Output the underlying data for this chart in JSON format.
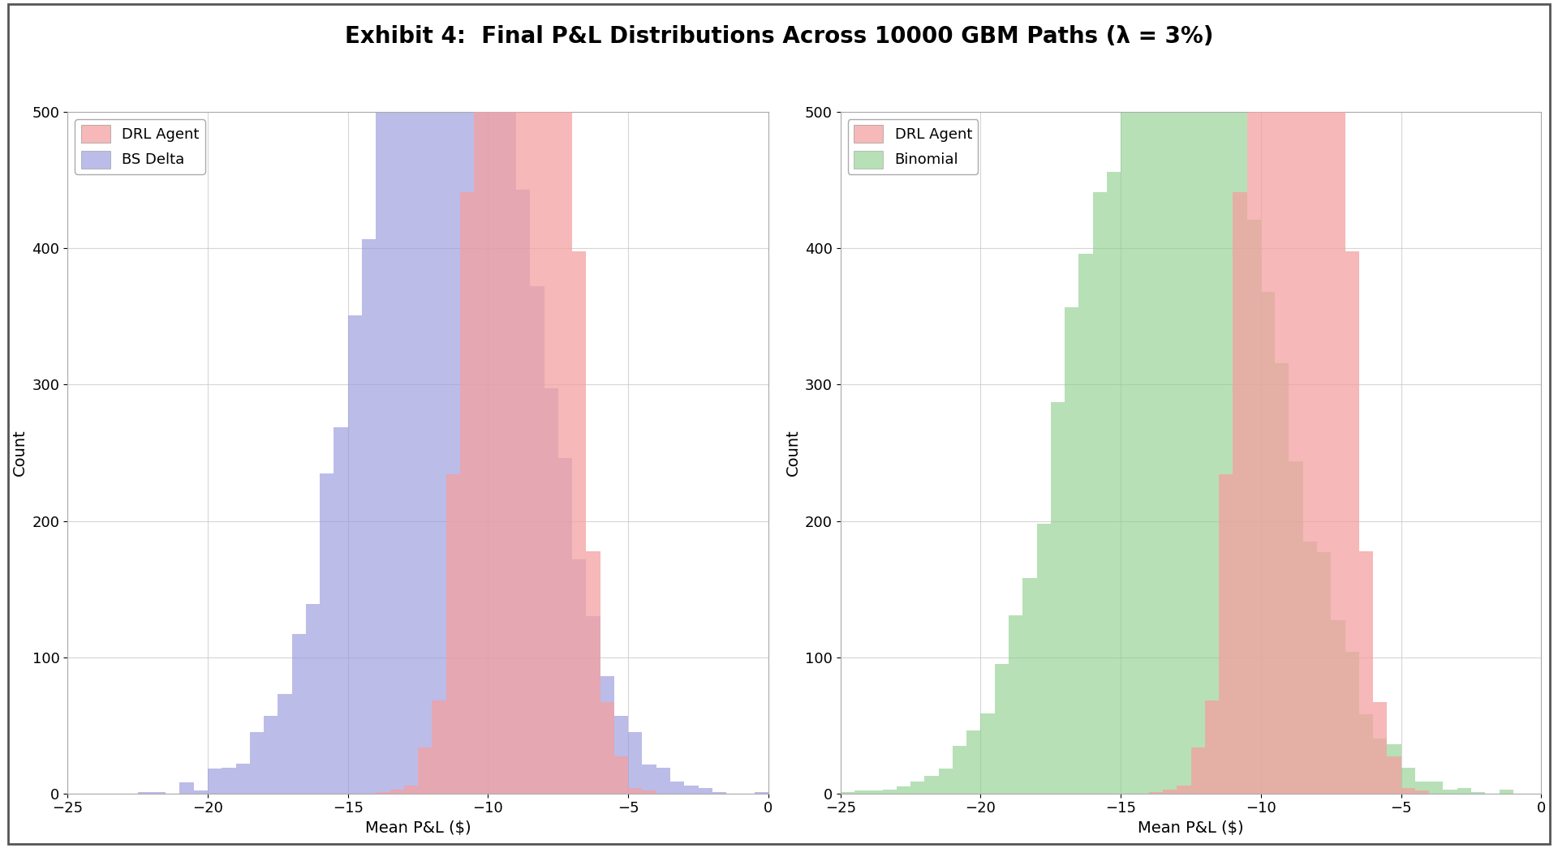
{
  "title": "Exhibit 4:  Final P&L Distributions Across 10000 GBM Paths (λ = 3%)",
  "title_fontsize": 20,
  "title_fontweight": "bold",
  "xlabel": "Mean P&L ($)",
  "ylabel": "Count",
  "xlim": [
    -25,
    0
  ],
  "ylim": [
    0,
    500
  ],
  "xticks": [
    -25,
    -20,
    -15,
    -10,
    -5,
    0
  ],
  "yticks": [
    0,
    100,
    200,
    300,
    400,
    500
  ],
  "drl_color": "#F4A0A0",
  "bs_color": "#9999DD",
  "binomial_color": "#88CC88",
  "drl_alpha": 0.75,
  "bs_alpha": 0.65,
  "binomial_alpha": 0.6,
  "drl_mean": -8.8,
  "drl_std": 1.2,
  "bs_mean": -11.5,
  "bs_std": 2.8,
  "binomial_mean": -13.0,
  "binomial_std": 3.2,
  "n_samples": 10000,
  "n_bins": 50,
  "seed": 42,
  "left_legend": [
    "DRL Agent",
    "BS Delta"
  ],
  "right_legend": [
    "DRL Agent",
    "Binomial"
  ],
  "figsize": [
    19.2,
    10.46
  ],
  "dpi": 100,
  "background_color": "#ffffff",
  "grid_color": "#cccccc",
  "grid_alpha": 0.8,
  "tick_label_fontsize": 13,
  "axis_label_fontsize": 14,
  "legend_fontsize": 13,
  "outer_border_color": "#555555",
  "outer_border_lw": 2.0
}
